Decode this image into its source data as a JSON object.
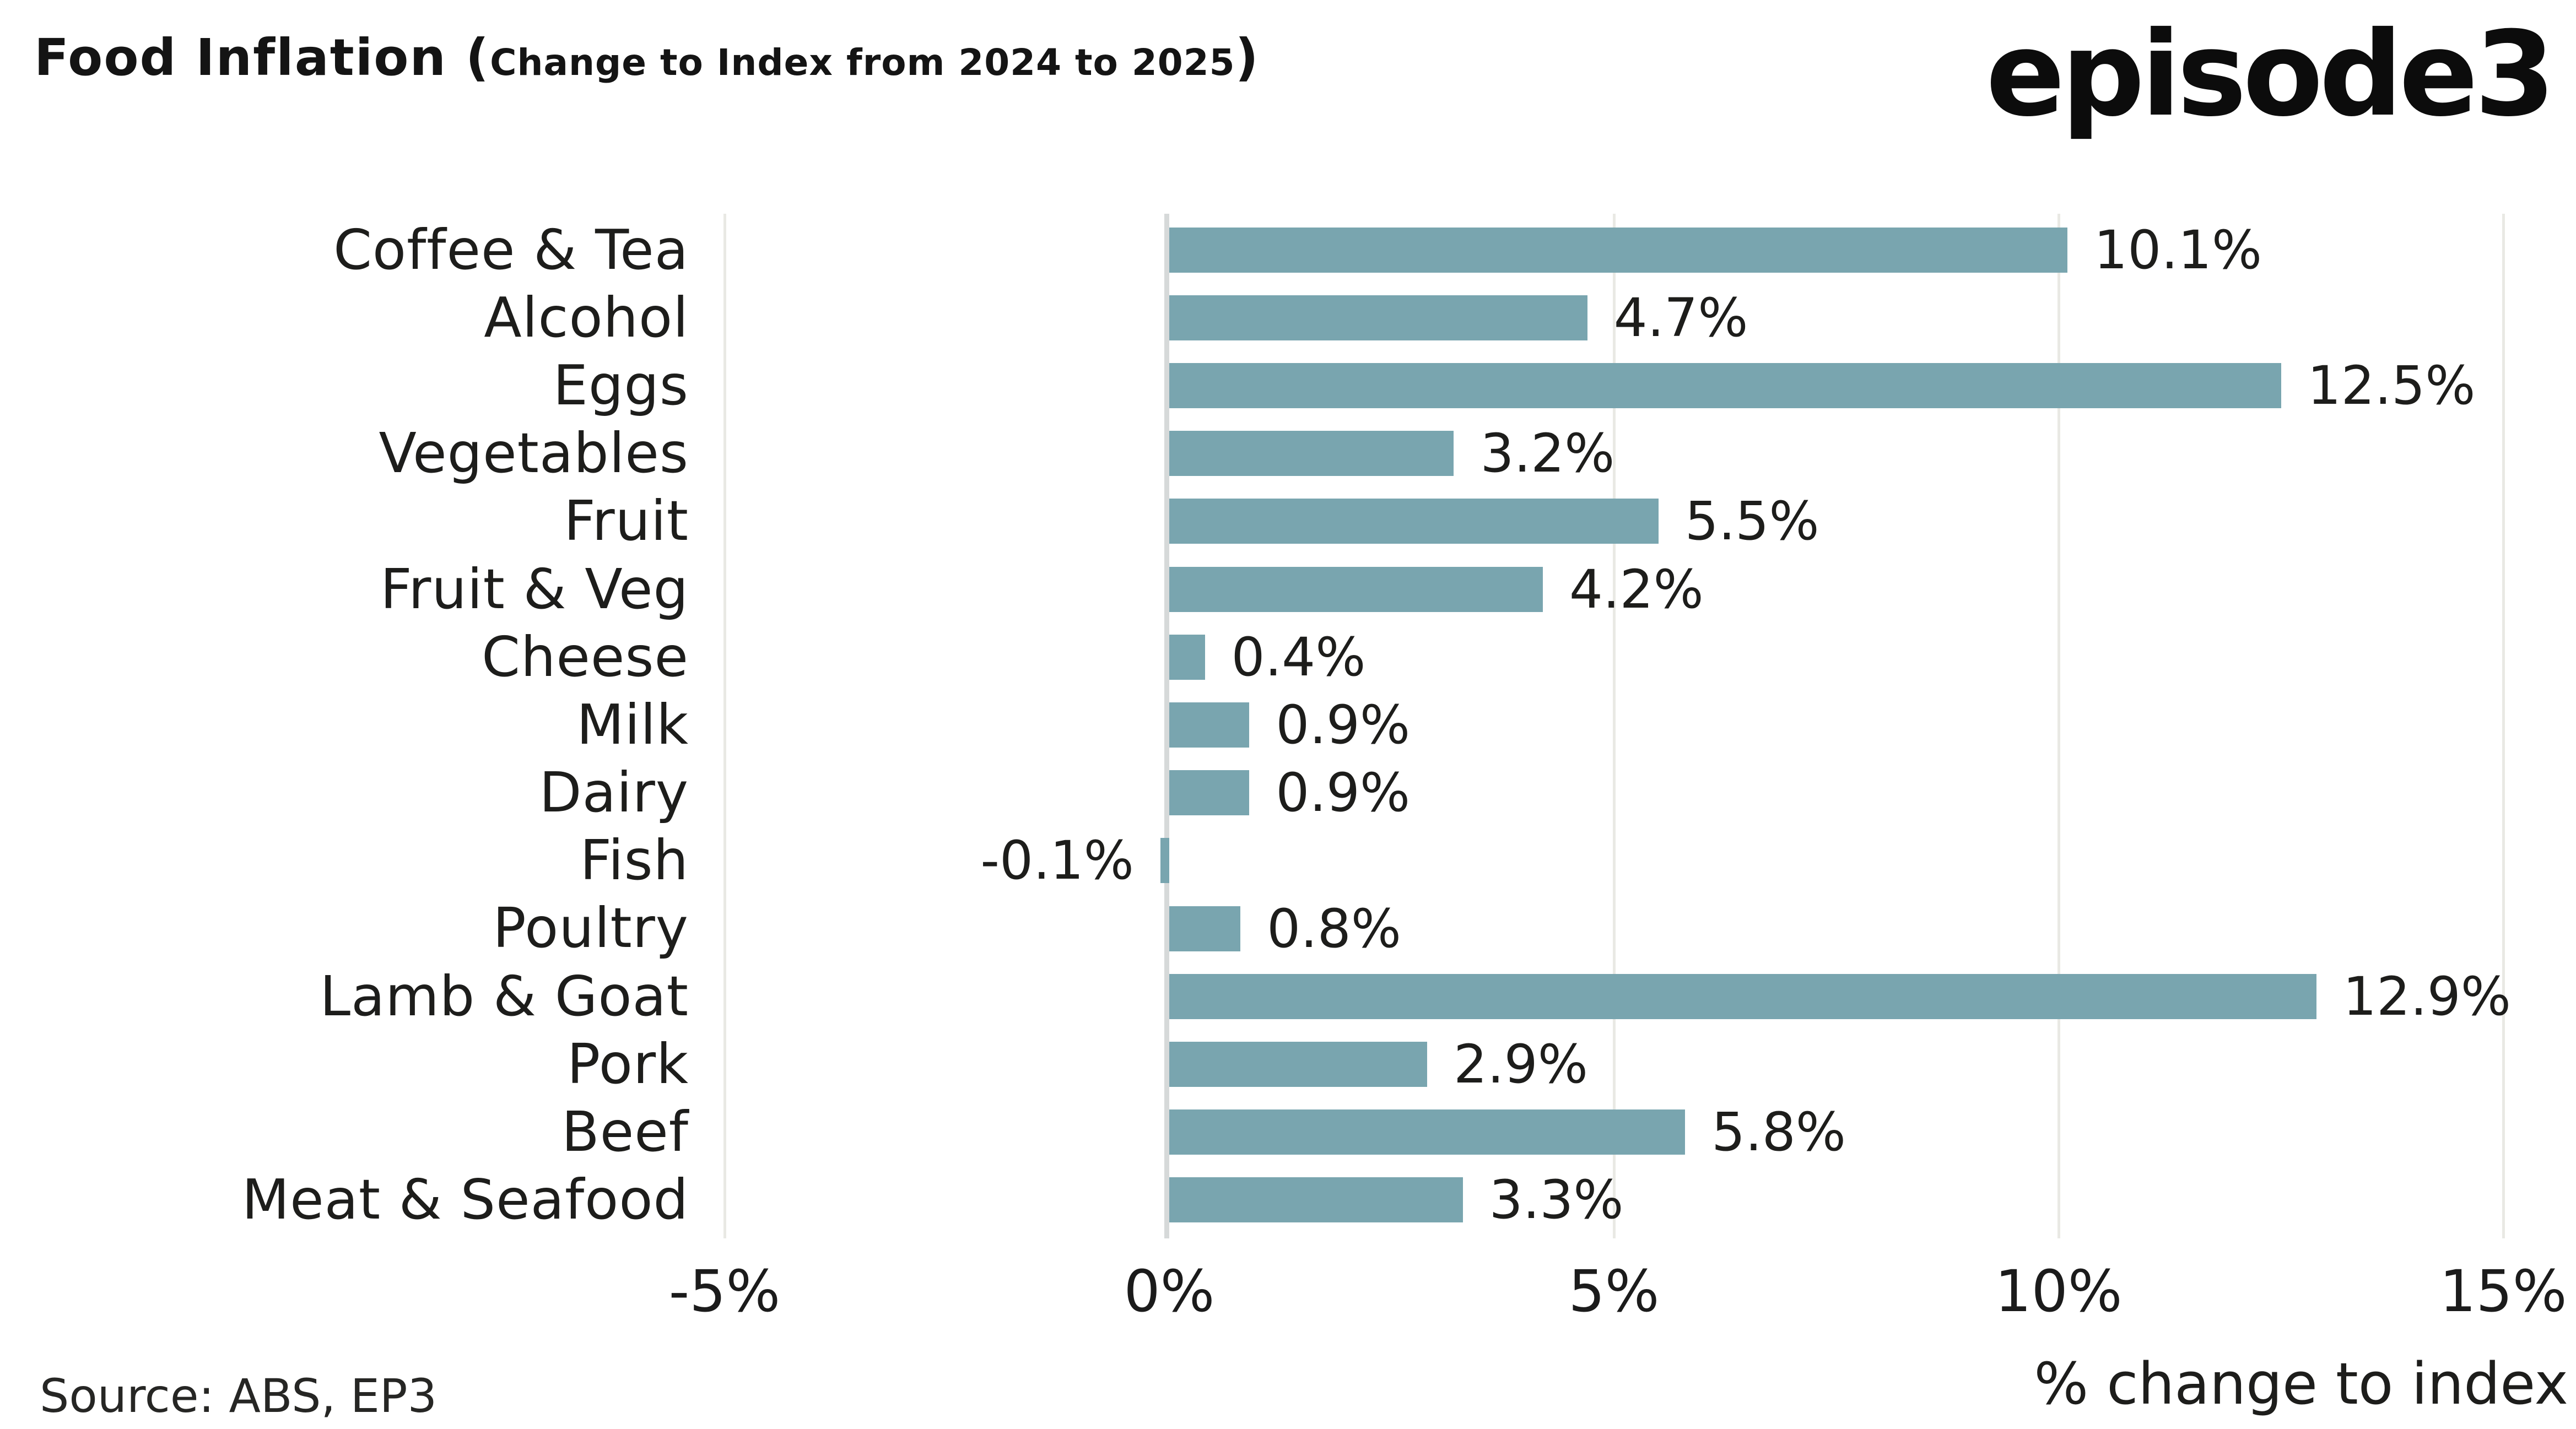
{
  "header": {
    "title_main": "Food Inflation (",
    "title_sub": "Change to Index from 2024 to 2025",
    "title_close": ")",
    "logo_text": "episode3"
  },
  "chart_data": {
    "type": "bar",
    "orientation": "horizontal",
    "title": "Food Inflation (Change to Index from 2024 to 2025)",
    "categories": [
      "Coffee & Tea",
      "Alcohol",
      "Eggs",
      "Vegetables",
      "Fruit",
      "Fruit & Veg",
      "Cheese",
      "Milk",
      "Dairy",
      "Fish",
      "Poultry",
      "Lamb & Goat",
      "Pork",
      "Beef",
      "Meat & Seafood"
    ],
    "values": [
      10.1,
      4.7,
      12.5,
      3.2,
      5.5,
      4.2,
      0.4,
      0.9,
      0.9,
      -0.1,
      0.8,
      12.9,
      2.9,
      5.8,
      3.3
    ],
    "value_labels": [
      "10.1%",
      "4.7%",
      "12.5%",
      "3.2%",
      "5.5%",
      "4.2%",
      "0.4%",
      "0.9%",
      "0.9%",
      "-0.1%",
      "0.8%",
      "12.9%",
      "2.9%",
      "5.8%",
      "3.3%"
    ],
    "xlabel": "% change to index",
    "x_ticks": [
      -5,
      0,
      5,
      10,
      15
    ],
    "x_tick_labels": [
      "-5%",
      "0%",
      "5%",
      "10%",
      "15%"
    ],
    "xlim": [
      -5,
      15.8
    ],
    "grid": "vertical",
    "legend": "none",
    "bar_color": "#79A5AF",
    "gridline_color": "#E9E9E4",
    "zero_axis_color": "#D6D9D9",
    "text_color": "#1d1d1b"
  },
  "footer": {
    "source": "Source: ABS, EP3"
  }
}
